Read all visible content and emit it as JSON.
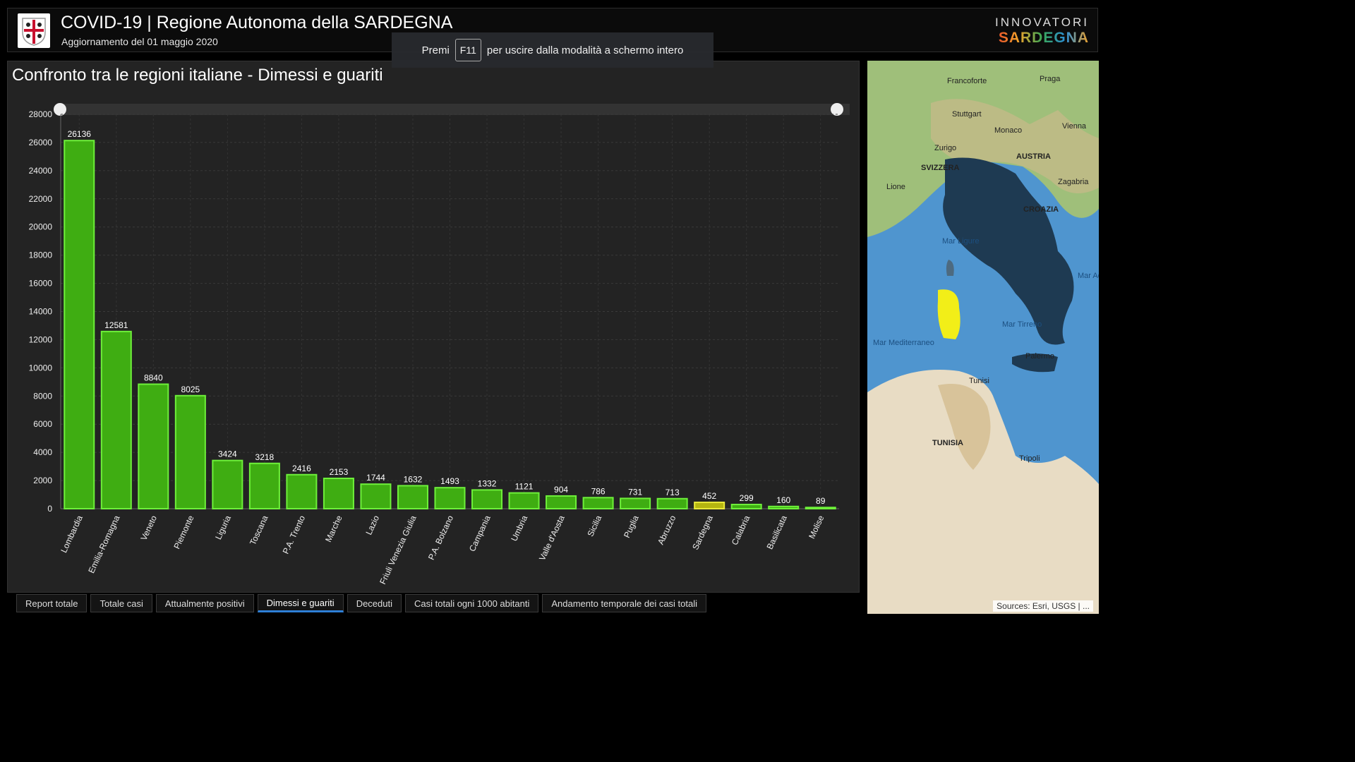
{
  "header": {
    "title": "COVID-19 | Regione Autonoma della SARDEGNA",
    "subtitle": "Aggiornamento del 01 maggio 2020",
    "brand_top": "INNOVATORI",
    "brand_bottom": "SARDEGNA"
  },
  "fullscreen_hint": {
    "prefix": "Premi",
    "key": "F11",
    "suffix": "per uscire dalla modalità a schermo intero"
  },
  "chart_panel": {
    "title": "Confronto tra le regioni italiane - Dimessi e guariti"
  },
  "chart_data": {
    "type": "bar",
    "categories": [
      "Lombardia",
      "Emilia-Romagna",
      "Veneto",
      "Piemonte",
      "Liguria",
      "Toscana",
      "P.A. Trento",
      "Marche",
      "Lazio",
      "Friuli Venezia Giulia",
      "P.A. Bolzano",
      "Campania",
      "Umbria",
      "Valle d'Aosta",
      "Sicilia",
      "Puglia",
      "Abruzzo",
      "Sardegna",
      "Calabria",
      "Basilicata",
      "Molise"
    ],
    "values": [
      26136,
      12581,
      8840,
      8025,
      3424,
      3218,
      2416,
      2153,
      1744,
      1632,
      1493,
      1332,
      1121,
      904,
      786,
      731,
      713,
      452,
      299,
      160,
      89
    ],
    "highlight": "Sardegna",
    "ylim": [
      0,
      28000
    ],
    "yticks": [
      0,
      2000,
      4000,
      6000,
      8000,
      10000,
      12000,
      14000,
      16000,
      18000,
      20000,
      22000,
      24000,
      26000,
      28000
    ],
    "colors": {
      "bar": "#3fad12",
      "bar_border": "#6ef03a",
      "highlight": "#b5b510",
      "highlight_border": "#e8e83a"
    },
    "grid": true
  },
  "map": {
    "labels": [
      "Francoforte",
      "Praga",
      "Stuttgart",
      "Monaco",
      "Vienna",
      "Zurigo",
      "AUSTRIA",
      "SVIZZERA",
      "Lione",
      "Zagabria",
      "CROAZIA",
      "Mar Ligure",
      "Mar Tirreno",
      "Mar Mediterraneo",
      "Palermo",
      "Tunisi",
      "TUNISIA",
      "Tripoli",
      "Mar Adriatico"
    ],
    "attribution": "Sources: Esri, USGS | ..."
  },
  "tabs": [
    {
      "label": "Report totale",
      "active": false
    },
    {
      "label": "Totale casi",
      "active": false
    },
    {
      "label": "Attualmente positivi",
      "active": false
    },
    {
      "label": "Dimessi e guariti",
      "active": true
    },
    {
      "label": "Deceduti",
      "active": false
    },
    {
      "label": "Casi totali ogni 1000 abitanti",
      "active": false
    },
    {
      "label": "Andamento temporale dei casi totali",
      "active": false
    }
  ]
}
